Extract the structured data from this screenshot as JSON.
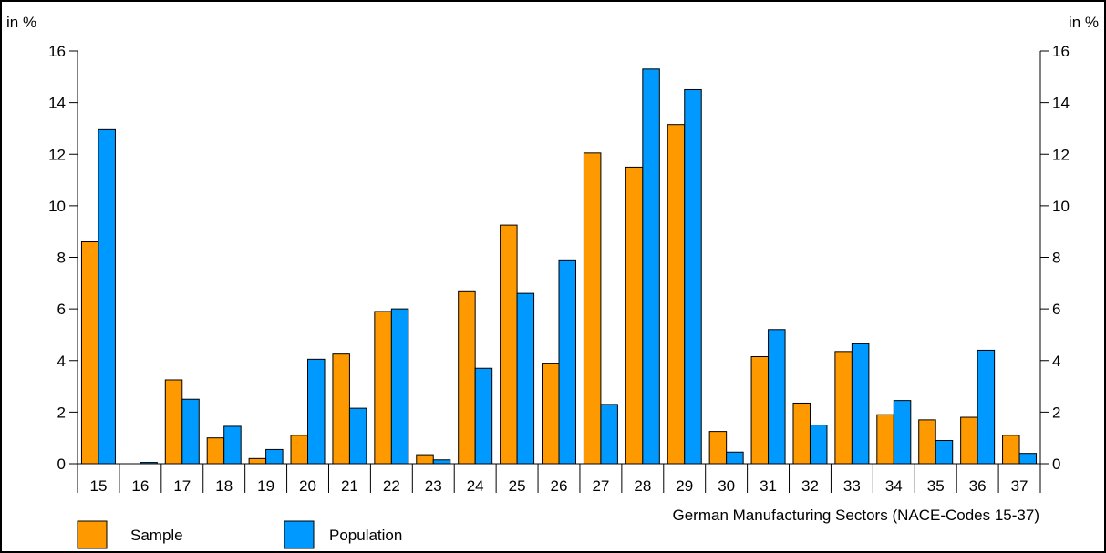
{
  "chart_data": {
    "type": "bar",
    "title": "",
    "xlabel": "German Manufacturing Sectors (NACE-Codes 15-37)",
    "ylabel_left": "in %",
    "ylabel_right": "in %",
    "ylim": [
      0,
      16
    ],
    "yticks": [
      0,
      2,
      4,
      6,
      8,
      10,
      12,
      14,
      16
    ],
    "grid": false,
    "legend_position": "bottom-left",
    "categories": [
      "15",
      "16",
      "17",
      "18",
      "19",
      "20",
      "21",
      "22",
      "23",
      "24",
      "25",
      "26",
      "27",
      "28",
      "29",
      "30",
      "31",
      "32",
      "33",
      "34",
      "35",
      "36",
      "37"
    ],
    "series": [
      {
        "name": "Sample",
        "color": "#FF9900",
        "values": [
          8.6,
          0.0,
          3.25,
          1.0,
          0.2,
          1.1,
          4.25,
          5.9,
          0.35,
          6.7,
          9.25,
          3.9,
          12.05,
          11.5,
          13.15,
          1.25,
          4.15,
          2.35,
          4.35,
          1.9,
          1.7,
          1.8,
          1.1
        ]
      },
      {
        "name": "Population",
        "color": "#0099FF",
        "values": [
          12.95,
          0.05,
          2.5,
          1.45,
          0.55,
          4.05,
          2.15,
          6.0,
          0.15,
          3.7,
          6.6,
          7.9,
          2.3,
          15.3,
          14.5,
          0.45,
          5.2,
          1.5,
          4.65,
          2.45,
          0.9,
          4.4,
          0.4
        ]
      }
    ]
  }
}
